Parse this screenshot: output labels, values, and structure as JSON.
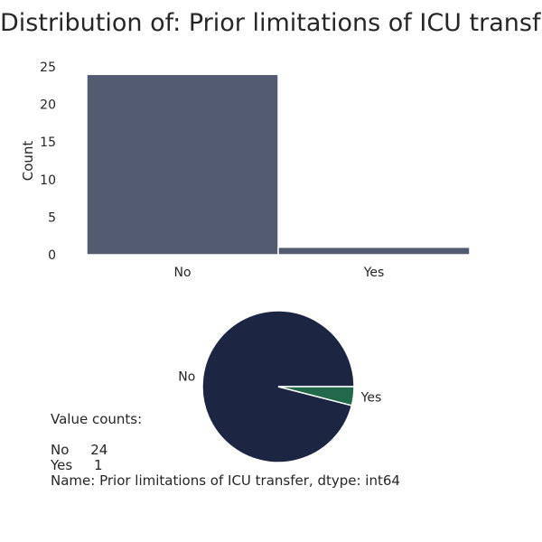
{
  "title": "Distribution of: Prior limitations of ICU transfer",
  "chart_data": [
    {
      "type": "bar",
      "categories": [
        "No",
        "Yes"
      ],
      "values": [
        24,
        1
      ],
      "xlabel": "",
      "ylabel": "Count",
      "ylim": [
        0,
        25
      ],
      "yticks": [
        0,
        5,
        10,
        15,
        20,
        25
      ],
      "grid": false,
      "colors": {
        "bar": "#525b6f",
        "edge": "#ffffff"
      }
    },
    {
      "type": "pie",
      "labels": [
        "No",
        "Yes"
      ],
      "values": [
        24,
        1
      ],
      "colors": [
        "#1c2541",
        "#22684a"
      ]
    }
  ],
  "value_counts_text": "Value counts:\n\nNo     24\nYes     1\nName: Prior limitations of ICU transfer, dtype: int64"
}
